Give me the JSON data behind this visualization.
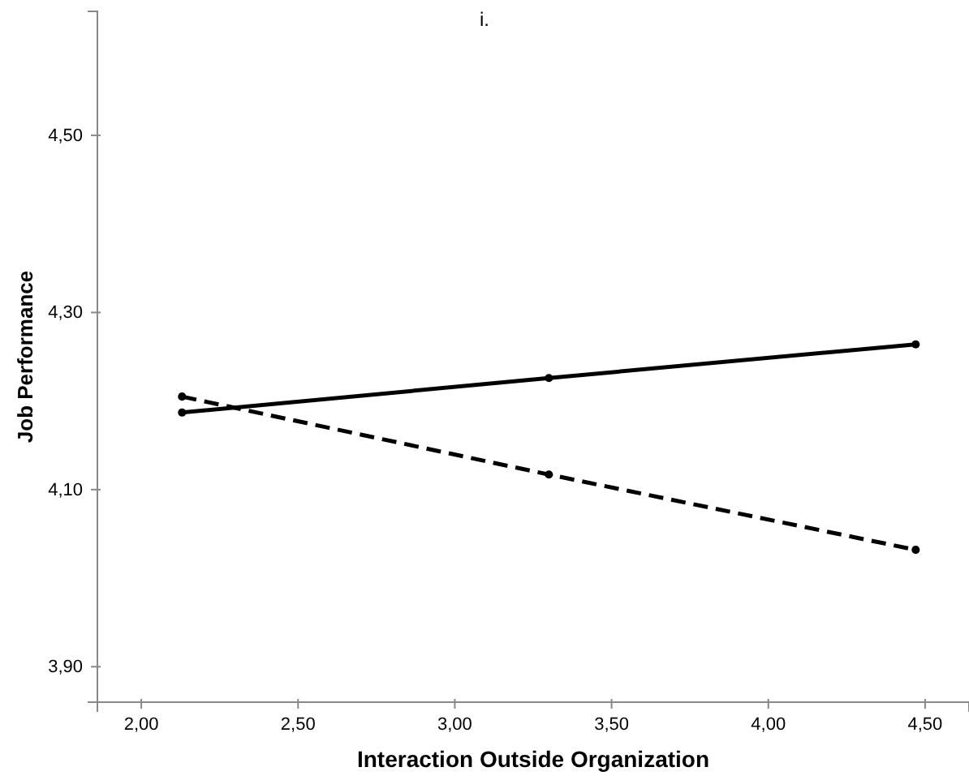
{
  "chart_data": {
    "type": "line",
    "title": "i.",
    "xlabel": "Interaction Outside Organization",
    "ylabel": "Job Performance",
    "x": [
      2.13,
      3.3,
      4.47
    ],
    "series": [
      {
        "color": "#000000",
        "values": [
          4.187,
          4.226,
          4.264
        ],
        "line_style": "solid"
      },
      {
        "color": "#000000",
        "values": [
          4.205,
          4.117,
          4.032
        ],
        "line_style": "dashed"
      }
    ],
    "xlim": [
      1.86,
      4.64
    ],
    "ylim": [
      3.86,
      4.64
    ],
    "xticks": [
      {
        "value": 2,
        "label": "2,00"
      },
      {
        "value": 2.5,
        "label": "2,50"
      },
      {
        "value": 3,
        "label": "3,00"
      },
      {
        "value": 3.5,
        "label": "3,50"
      },
      {
        "value": 4,
        "label": "4,00"
      },
      {
        "value": 4.5,
        "label": "4,50"
      }
    ],
    "yticks": [
      {
        "value": 3.9,
        "label": "3,90"
      },
      {
        "value": 4.1,
        "label": "4,10"
      },
      {
        "value": 4.3,
        "label": "4,30"
      },
      {
        "value": 4.5,
        "label": "4,50"
      }
    ],
    "grid": false,
    "marker": "circle"
  }
}
